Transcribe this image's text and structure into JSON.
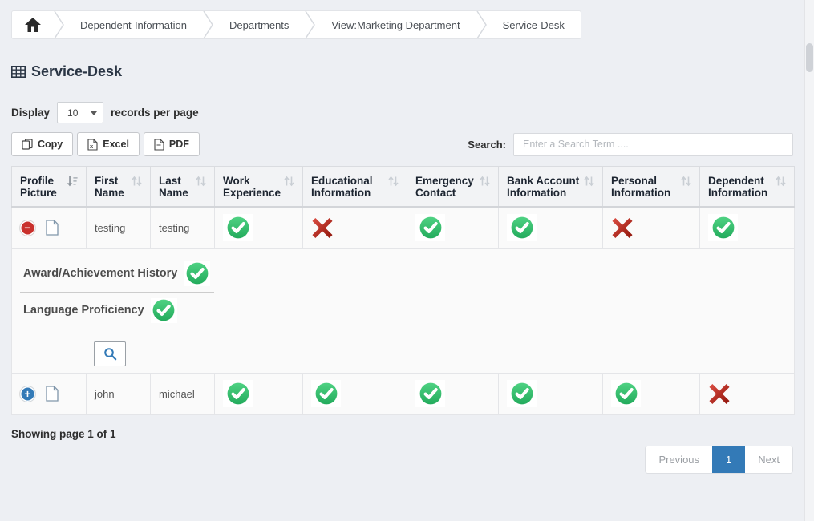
{
  "breadcrumb": {
    "items": [
      "Dependent-Information",
      "Departments",
      "View:Marketing Department",
      "Service-Desk"
    ]
  },
  "page": {
    "title": "Service-Desk"
  },
  "display_control": {
    "prefix": "Display",
    "selected": "10",
    "suffix": "records per page"
  },
  "export_buttons": {
    "copy": "Copy",
    "excel": "Excel",
    "pdf": "PDF"
  },
  "search": {
    "label": "Search:",
    "placeholder": "Enter a Search Term ...."
  },
  "table": {
    "columns": [
      {
        "label": "Profile Picture",
        "sorted": true
      },
      {
        "label": "First Name",
        "sorted": false
      },
      {
        "label": "Last Name",
        "sorted": false
      },
      {
        "label": "Work Experience",
        "sorted": false
      },
      {
        "label": "Educational Information",
        "sorted": false
      },
      {
        "label": "Emergency Contact",
        "sorted": false
      },
      {
        "label": "Bank Account Information",
        "sorted": false
      },
      {
        "label": "Personal Information",
        "sorted": false
      },
      {
        "label": "Dependent Information",
        "sorted": false
      }
    ],
    "rows": [
      {
        "expanded": true,
        "first_name": "testing",
        "last_name": "testing",
        "status": {
          "work_experience": true,
          "educational_information": false,
          "emergency_contact": true,
          "bank_account_information": true,
          "personal_information": false,
          "dependent_information": true
        }
      },
      {
        "expanded": false,
        "first_name": "john",
        "last_name": "michael",
        "status": {
          "work_experience": true,
          "educational_information": true,
          "emergency_contact": true,
          "bank_account_information": true,
          "personal_information": true,
          "dependent_information": false
        }
      }
    ],
    "detail_panel": {
      "rows": [
        {
          "label": "Award/Achievement History",
          "value": true
        },
        {
          "label": "Language Proficiency",
          "value": true
        }
      ]
    }
  },
  "footer": {
    "status": "Showing page 1 of 1",
    "pagination": {
      "previous": "Previous",
      "current": "1",
      "next": "Next"
    }
  },
  "colors": {
    "status_true_top": "#4fd283",
    "status_true_bottom": "#23ab5c",
    "status_false_top": "#dd4f44",
    "status_false_bottom": "#8e1309",
    "accent_blue": "#337ab7",
    "collapse_red": "#c9302c"
  }
}
